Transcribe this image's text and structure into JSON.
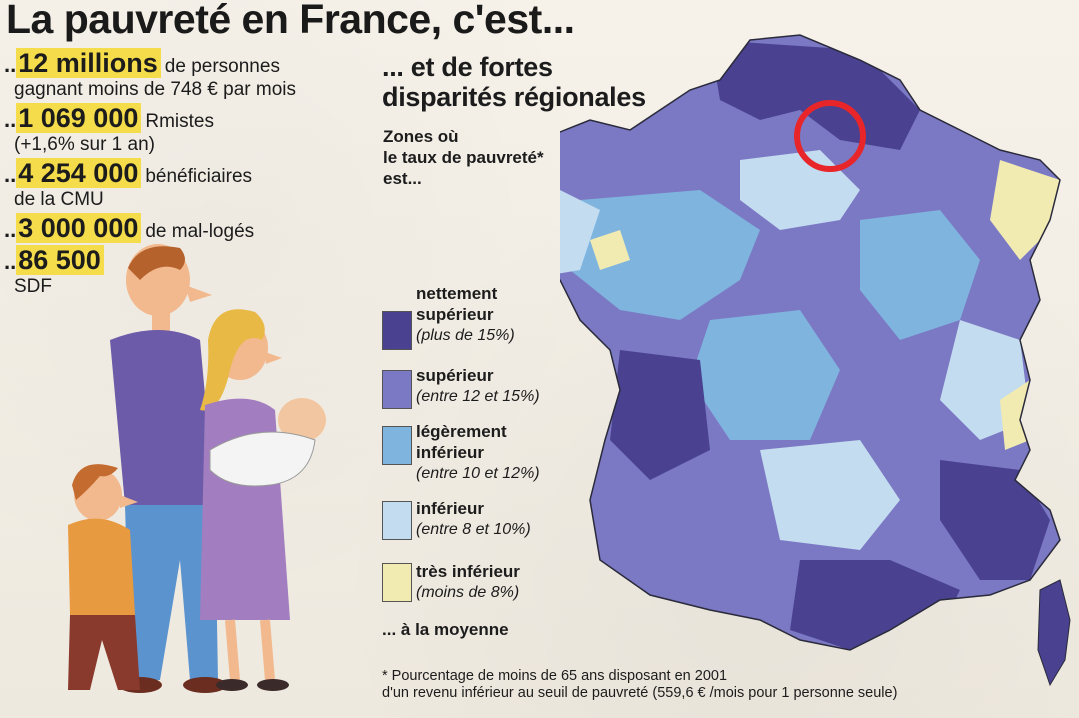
{
  "title": "La pauvreté en France, c'est...",
  "stats": [
    {
      "value": "12 millions",
      "text": "de personnes",
      "text2": "gagnant moins de 748 € par mois"
    },
    {
      "value": "1 069 000",
      "text": "Rmistes",
      "text2": "(+1,6% sur 1 an)"
    },
    {
      "value": "4 254 000",
      "text": "bénéficiaires",
      "text2": "de la CMU"
    },
    {
      "value": "3 000 000",
      "text": "de mal-logés",
      "text2": ""
    },
    {
      "value": "86 500",
      "text": "",
      "text2": "SDF"
    }
  ],
  "subtitle_line1": "... et de fortes",
  "subtitle_line2": "disparités régionales",
  "zones_label_1": "Zones où",
  "zones_label_2": "le taux de pauvreté*",
  "zones_label_3": "est...",
  "legend": [
    {
      "label1": "nettement",
      "label2": "supérieur",
      "range": "(plus de 15%)",
      "color": "#4a4290"
    },
    {
      "label1": "supérieur",
      "label2": "",
      "range": "(entre 12 et 15%)",
      "color": "#7b78c4"
    },
    {
      "label1": "légèrement",
      "label2": "inférieur",
      "range": "(entre 10 et 12%)",
      "color": "#7fb4de"
    },
    {
      "label1": "inférieur",
      "label2": "",
      "range": "(entre 8 et 10%)",
      "color": "#c3dcef"
    },
    {
      "label1": "très inférieur",
      "label2": "",
      "range": "(moins de 8%)",
      "color": "#f1ebb2"
    }
  ],
  "average_label": "... à la moyenne",
  "footnote_1": "* Pourcentage de moins de 65 ans disposant en 2001",
  "footnote_2": "d'un revenu inférieur au seuil de pauvreté (559,6 € /mois pour 1 personne seule)",
  "marker_color": "#e8262a"
}
